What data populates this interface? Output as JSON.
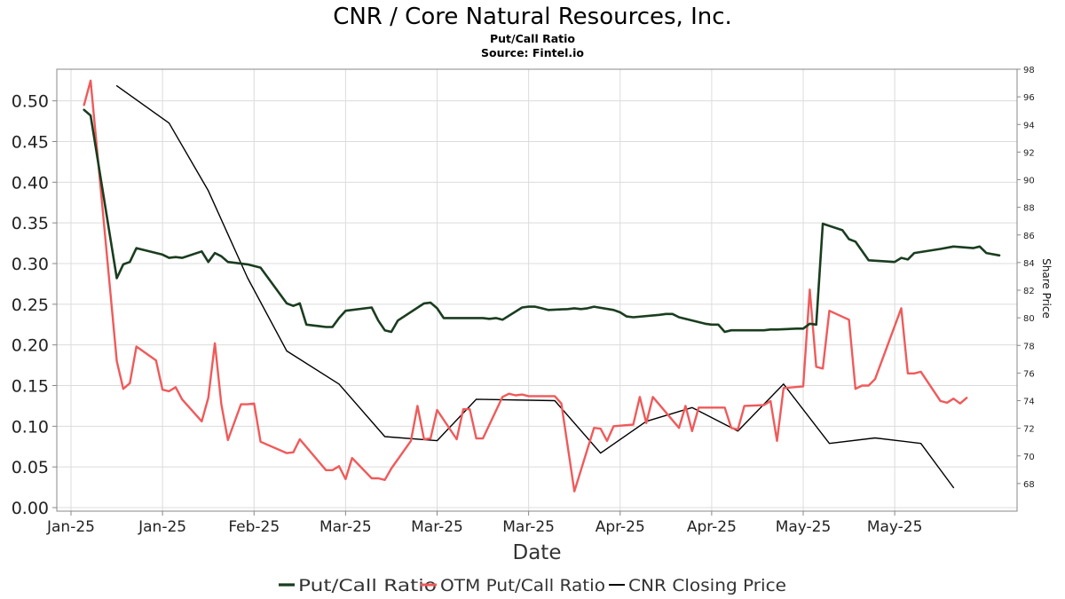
{
  "chart_data": {
    "type": "line",
    "title": "CNR / Core Natural Resources, Inc.",
    "subtitle_lines": [
      "Put/Call Ratio",
      "Source: Fintel.io"
    ],
    "xlabel": "Date",
    "ylabel_left": "",
    "ylabel_right": "Share Price",
    "x_range": [
      "2025-01-01",
      "2025-05-23"
    ],
    "x_ticks": [
      {
        "date": "2025-01-01",
        "label": "Jan-25"
      },
      {
        "date": "2025-01-15",
        "label": "Jan-25"
      },
      {
        "date": "2025-01-29",
        "label": "Feb-25"
      },
      {
        "date": "2025-02-12",
        "label": "Mar-25"
      },
      {
        "date": "2025-02-26",
        "label": "Mar-25"
      },
      {
        "date": "2025-03-12",
        "label": "Mar-25"
      },
      {
        "date": "2025-03-26",
        "label": "Apr-25"
      },
      {
        "date": "2025-04-09",
        "label": "Apr-25"
      },
      {
        "date": "2025-04-23",
        "label": "May-25"
      },
      {
        "date": "2025-05-07",
        "label": "May-25"
      }
    ],
    "ylim_left": [
      0,
      0.54
    ],
    "yticks_left": [
      "0.00",
      "0.05",
      "0.10",
      "0.15",
      "0.20",
      "0.25",
      "0.30",
      "0.35",
      "0.40",
      "0.45",
      "0.50"
    ],
    "ylim_right": [
      66,
      98
    ],
    "yticks_right": [
      "68",
      "70",
      "72",
      "74",
      "76",
      "78",
      "80",
      "82",
      "84",
      "86",
      "88",
      "90",
      "92",
      "94",
      "96",
      "98"
    ],
    "grid": true,
    "legend_position": "bottom-center",
    "series": [
      {
        "name": "Put/Call Ratio",
        "axis": "left",
        "color": "#1a3d1f",
        "points": [
          [
            "2025-01-03",
            0.489
          ],
          [
            "2025-01-04",
            0.482
          ],
          [
            "2025-01-08",
            0.282
          ],
          [
            "2025-01-09",
            0.299
          ],
          [
            "2025-01-10",
            0.302
          ],
          [
            "2025-01-11",
            0.319
          ],
          [
            "2025-01-15",
            0.311
          ],
          [
            "2025-01-16",
            0.307
          ],
          [
            "2025-01-17",
            0.308
          ],
          [
            "2025-01-18",
            0.307
          ],
          [
            "2025-01-21",
            0.315
          ],
          [
            "2025-01-22",
            0.302
          ],
          [
            "2025-01-23",
            0.313
          ],
          [
            "2025-01-24",
            0.309
          ],
          [
            "2025-01-25",
            0.302
          ],
          [
            "2025-01-28",
            0.299
          ],
          [
            "2025-01-29",
            0.297
          ],
          [
            "2025-01-30",
            0.295
          ],
          [
            "2025-02-03",
            0.251
          ],
          [
            "2025-02-04",
            0.248
          ],
          [
            "2025-02-05",
            0.251
          ],
          [
            "2025-02-06",
            0.225
          ],
          [
            "2025-02-07",
            0.224
          ],
          [
            "2025-02-08",
            0.223
          ],
          [
            "2025-02-09",
            0.222
          ],
          [
            "2025-02-10",
            0.222
          ],
          [
            "2025-02-11",
            0.233
          ],
          [
            "2025-02-12",
            0.242
          ],
          [
            "2025-02-16",
            0.246
          ],
          [
            "2025-02-17",
            0.23
          ],
          [
            "2025-02-18",
            0.218
          ],
          [
            "2025-02-19",
            0.216
          ],
          [
            "2025-02-20",
            0.23
          ],
          [
            "2025-02-24",
            0.251
          ],
          [
            "2025-02-25",
            0.252
          ],
          [
            "2025-02-26",
            0.245
          ],
          [
            "2025-02-27",
            0.233
          ],
          [
            "2025-03-04",
            0.233
          ],
          [
            "2025-03-05",
            0.233
          ],
          [
            "2025-03-06",
            0.232
          ],
          [
            "2025-03-07",
            0.233
          ],
          [
            "2025-03-08",
            0.231
          ],
          [
            "2025-03-11",
            0.246
          ],
          [
            "2025-03-12",
            0.247
          ],
          [
            "2025-03-13",
            0.247
          ],
          [
            "2025-03-14",
            0.245
          ],
          [
            "2025-03-15",
            0.243
          ],
          [
            "2025-03-18",
            0.244
          ],
          [
            "2025-03-19",
            0.245
          ],
          [
            "2025-03-20",
            0.244
          ],
          [
            "2025-03-21",
            0.245
          ],
          [
            "2025-03-22",
            0.247
          ],
          [
            "2025-03-25",
            0.243
          ],
          [
            "2025-03-26",
            0.24
          ],
          [
            "2025-03-27",
            0.235
          ],
          [
            "2025-03-28",
            0.234
          ],
          [
            "2025-04-01",
            0.237
          ],
          [
            "2025-04-02",
            0.238
          ],
          [
            "2025-04-03",
            0.238
          ],
          [
            "2025-04-04",
            0.234
          ],
          [
            "2025-04-08",
            0.226
          ],
          [
            "2025-04-09",
            0.225
          ],
          [
            "2025-04-10",
            0.225
          ],
          [
            "2025-04-11",
            0.216
          ],
          [
            "2025-04-12",
            0.218
          ],
          [
            "2025-04-17",
            0.218
          ],
          [
            "2025-04-18",
            0.219
          ],
          [
            "2025-04-19",
            0.219
          ],
          [
            "2025-04-22",
            0.22
          ],
          [
            "2025-04-23",
            0.22
          ],
          [
            "2025-04-24",
            0.226
          ],
          [
            "2025-04-25",
            0.225
          ],
          [
            "2025-04-26",
            0.349
          ],
          [
            "2025-04-29",
            0.341
          ],
          [
            "2025-04-30",
            0.33
          ],
          [
            "2025-05-01",
            0.327
          ],
          [
            "2025-05-03",
            0.304
          ],
          [
            "2025-05-07",
            0.302
          ],
          [
            "2025-05-08",
            0.307
          ],
          [
            "2025-05-09",
            0.305
          ],
          [
            "2025-05-10",
            0.313
          ],
          [
            "2025-05-14",
            0.318
          ],
          [
            "2025-05-16",
            0.321
          ],
          [
            "2025-05-19",
            0.319
          ],
          [
            "2025-05-20",
            0.321
          ],
          [
            "2025-05-21",
            0.313
          ],
          [
            "2025-05-23",
            0.31
          ]
        ]
      },
      {
        "name": "OTM Put/Call Ratio",
        "axis": "left",
        "color": "#f05a5a",
        "points": [
          [
            "2025-01-03",
            0.495
          ],
          [
            "2025-01-04",
            0.525
          ],
          [
            "2025-01-08",
            0.18
          ],
          [
            "2025-01-09",
            0.146
          ],
          [
            "2025-01-10",
            0.153
          ],
          [
            "2025-01-11",
            0.198
          ],
          [
            "2025-01-14",
            0.181
          ],
          [
            "2025-01-15",
            0.145
          ],
          [
            "2025-01-16",
            0.143
          ],
          [
            "2025-01-17",
            0.148
          ],
          [
            "2025-01-18",
            0.133
          ],
          [
            "2025-01-21",
            0.106
          ],
          [
            "2025-01-22",
            0.135
          ],
          [
            "2025-01-23",
            0.202
          ],
          [
            "2025-01-24",
            0.127
          ],
          [
            "2025-01-25",
            0.083
          ],
          [
            "2025-01-27",
            0.127
          ],
          [
            "2025-01-28",
            0.127
          ],
          [
            "2025-01-29",
            0.128
          ],
          [
            "2025-01-30",
            0.081
          ],
          [
            "2025-02-03",
            0.067
          ],
          [
            "2025-02-04",
            0.068
          ],
          [
            "2025-02-05",
            0.084
          ],
          [
            "2025-02-09",
            0.046
          ],
          [
            "2025-02-10",
            0.046
          ],
          [
            "2025-02-11",
            0.051
          ],
          [
            "2025-02-12",
            0.035
          ],
          [
            "2025-02-13",
            0.061
          ],
          [
            "2025-02-16",
            0.036
          ],
          [
            "2025-02-17",
            0.036
          ],
          [
            "2025-02-18",
            0.034
          ],
          [
            "2025-02-19",
            0.048
          ],
          [
            "2025-02-22",
            0.082
          ],
          [
            "2025-02-23",
            0.125
          ],
          [
            "2025-02-24",
            0.084
          ],
          [
            "2025-02-25",
            0.085
          ],
          [
            "2025-02-26",
            0.12
          ],
          [
            "2025-03-01",
            0.084
          ],
          [
            "2025-03-02",
            0.121
          ],
          [
            "2025-03-03",
            0.121
          ],
          [
            "2025-03-04",
            0.085
          ],
          [
            "2025-03-05",
            0.085
          ],
          [
            "2025-03-08",
            0.136
          ],
          [
            "2025-03-09",
            0.14
          ],
          [
            "2025-03-10",
            0.138
          ],
          [
            "2025-03-11",
            0.139
          ],
          [
            "2025-03-12",
            0.137
          ],
          [
            "2025-03-16",
            0.137
          ],
          [
            "2025-03-17",
            0.128
          ],
          [
            "2025-03-19",
            0.02
          ],
          [
            "2025-03-22",
            0.098
          ],
          [
            "2025-03-23",
            0.097
          ],
          [
            "2025-03-24",
            0.082
          ],
          [
            "2025-03-25",
            0.1
          ],
          [
            "2025-03-28",
            0.102
          ],
          [
            "2025-03-29",
            0.136
          ],
          [
            "2025-03-30",
            0.104
          ],
          [
            "2025-03-31",
            0.136
          ],
          [
            "2025-04-04",
            0.098
          ],
          [
            "2025-04-05",
            0.125
          ],
          [
            "2025-04-06",
            0.094
          ],
          [
            "2025-04-07",
            0.123
          ],
          [
            "2025-04-11",
            0.123
          ],
          [
            "2025-04-12",
            0.098
          ],
          [
            "2025-04-13",
            0.096
          ],
          [
            "2025-04-14",
            0.125
          ],
          [
            "2025-04-17",
            0.126
          ],
          [
            "2025-04-18",
            0.131
          ],
          [
            "2025-04-19",
            0.082
          ],
          [
            "2025-04-20",
            0.147
          ],
          [
            "2025-04-23",
            0.149
          ],
          [
            "2025-04-24",
            0.268
          ],
          [
            "2025-04-25",
            0.173
          ],
          [
            "2025-04-26",
            0.171
          ],
          [
            "2025-04-27",
            0.242
          ],
          [
            "2025-04-30",
            0.231
          ],
          [
            "2025-05-01",
            0.146
          ],
          [
            "2025-05-02",
            0.15
          ],
          [
            "2025-05-03",
            0.15
          ],
          [
            "2025-05-04",
            0.158
          ],
          [
            "2025-05-08",
            0.245
          ],
          [
            "2025-05-09",
            0.165
          ],
          [
            "2025-05-10",
            0.165
          ],
          [
            "2025-05-11",
            0.167
          ],
          [
            "2025-05-14",
            0.131
          ],
          [
            "2025-05-15",
            0.129
          ],
          [
            "2025-05-16",
            0.134
          ],
          [
            "2025-05-17",
            0.128
          ],
          [
            "2025-05-18",
            0.135
          ]
        ]
      },
      {
        "name": "CNR Closing Price",
        "axis": "right",
        "color": "#000000",
        "points": [
          [
            "2025-01-08",
            96.8
          ],
          [
            "2025-01-16",
            94.1
          ],
          [
            "2025-01-22",
            89.2
          ],
          [
            "2025-01-28",
            82.9
          ],
          [
            "2025-02-03",
            77.6
          ],
          [
            "2025-02-11",
            75.2
          ],
          [
            "2025-02-18",
            71.4
          ],
          [
            "2025-02-26",
            71.1
          ],
          [
            "2025-03-04",
            74.1
          ],
          [
            "2025-03-16",
            74.0
          ],
          [
            "2025-03-23",
            70.2
          ],
          [
            "2025-03-30",
            72.5
          ],
          [
            "2025-04-06",
            73.5
          ],
          [
            "2025-04-13",
            71.8
          ],
          [
            "2025-04-20",
            75.2
          ],
          [
            "2025-04-27",
            70.9
          ],
          [
            "2025-05-04",
            71.3
          ],
          [
            "2025-05-11",
            70.9
          ],
          [
            "2025-05-16",
            67.7
          ]
        ]
      }
    ]
  }
}
